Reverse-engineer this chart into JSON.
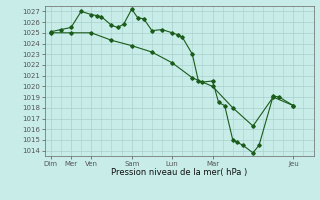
{
  "xlabel": "Pression niveau de la mer( hPa )",
  "bg_color": "#c8ece8",
  "grid_color": "#a8d0cc",
  "line_color": "#1a5c1a",
  "ylim": [
    1013.5,
    1027.5
  ],
  "series1": [
    [
      0.0,
      1025.1
    ],
    [
      0.5,
      1025.3
    ],
    [
      1.0,
      1025.5
    ],
    [
      1.5,
      1027.0
    ],
    [
      2.0,
      1026.7
    ],
    [
      2.3,
      1026.6
    ],
    [
      2.5,
      1026.5
    ],
    [
      3.0,
      1025.7
    ],
    [
      3.3,
      1025.5
    ],
    [
      3.6,
      1025.8
    ],
    [
      4.0,
      1027.2
    ],
    [
      4.3,
      1026.4
    ],
    [
      4.6,
      1026.3
    ],
    [
      5.0,
      1025.2
    ],
    [
      5.5,
      1025.3
    ],
    [
      6.0,
      1025.0
    ],
    [
      6.3,
      1024.8
    ],
    [
      6.5,
      1024.6
    ],
    [
      7.0,
      1023.0
    ],
    [
      7.3,
      1020.5
    ],
    [
      7.5,
      1020.4
    ],
    [
      8.0,
      1020.5
    ],
    [
      8.3,
      1018.5
    ],
    [
      8.6,
      1018.2
    ],
    [
      9.0,
      1015.0
    ],
    [
      9.2,
      1014.8
    ],
    [
      9.5,
      1014.5
    ],
    [
      10.0,
      1013.8
    ],
    [
      10.3,
      1014.5
    ],
    [
      11.0,
      1019.1
    ],
    [
      11.3,
      1019.0
    ],
    [
      12.0,
      1018.2
    ]
  ],
  "series2": [
    [
      0.0,
      1025.0
    ],
    [
      1.0,
      1025.0
    ],
    [
      2.0,
      1025.0
    ],
    [
      3.0,
      1024.3
    ],
    [
      4.0,
      1023.8
    ],
    [
      5.0,
      1023.2
    ],
    [
      6.0,
      1022.2
    ],
    [
      7.0,
      1020.8
    ],
    [
      8.0,
      1020.0
    ],
    [
      9.0,
      1018.0
    ],
    [
      10.0,
      1016.3
    ],
    [
      11.0,
      1019.0
    ],
    [
      12.0,
      1018.2
    ]
  ],
  "yticks": [
    1014,
    1015,
    1016,
    1017,
    1018,
    1019,
    1020,
    1021,
    1022,
    1023,
    1024,
    1025,
    1026,
    1027
  ],
  "xtick_major_pos": [
    0,
    1,
    2,
    4,
    6,
    8,
    12
  ],
  "xtick_major_labels": [
    "Dim",
    "Mer",
    "Ven",
    "Sam",
    "Lun",
    "Mar",
    "Jeu"
  ],
  "xlim": [
    -0.3,
    12.7
  ]
}
